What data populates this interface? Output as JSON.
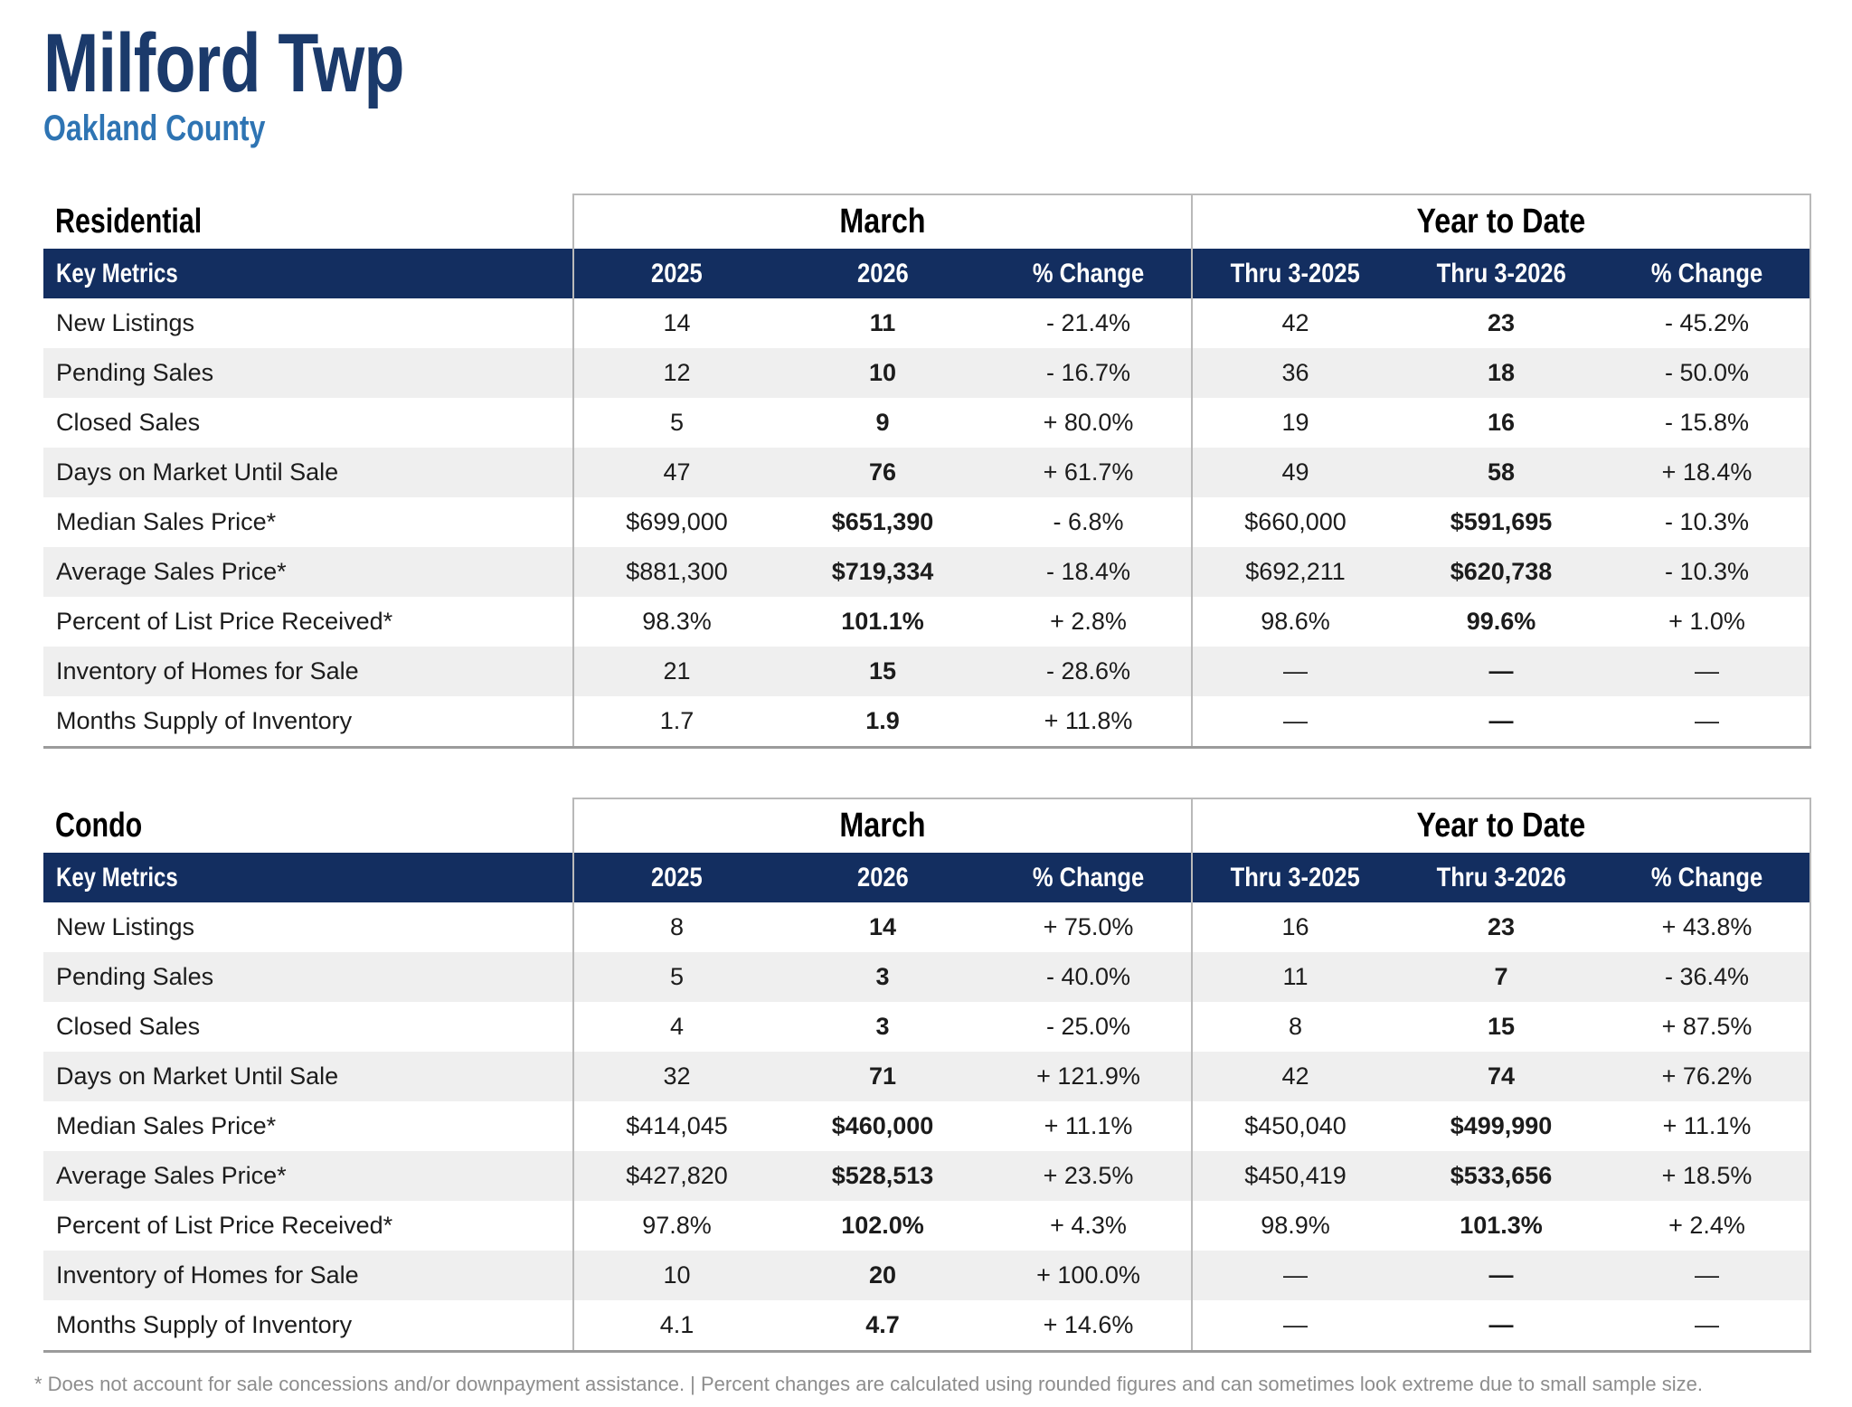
{
  "page": {
    "title": "Milford Twp",
    "subtitle": "Oakland County",
    "footnote": "* Does not account for sale concessions and/or downpayment assistance. | Percent changes are calculated using rounded figures and can sometimes look extreme due to small sample size."
  },
  "colors": {
    "navy": "#132e60",
    "title-navy": "#1b3a6b",
    "subtitle-blue": "#2e74b3",
    "row-alt": "#efefef",
    "line": "#b9b9b9",
    "footnote-gray": "#8d8d8d"
  },
  "tables": [
    {
      "section_label": "Residential",
      "group_headers": [
        "March",
        "Year to Date"
      ],
      "columns": [
        "Key Metrics",
        "2025",
        "2026",
        "% Change",
        "Thru 3-2025",
        "Thru 3-2026",
        "% Change"
      ],
      "rows": [
        {
          "label": "New Listings",
          "m2025": "14",
          "m2026": "11",
          "mchange": "- 21.4%",
          "y2025": "42",
          "y2026": "23",
          "ychange": "- 45.2%"
        },
        {
          "label": "Pending Sales",
          "m2025": "12",
          "m2026": "10",
          "mchange": "- 16.7%",
          "y2025": "36",
          "y2026": "18",
          "ychange": "- 50.0%"
        },
        {
          "label": "Closed Sales",
          "m2025": "5",
          "m2026": "9",
          "mchange": "+ 80.0%",
          "y2025": "19",
          "y2026": "16",
          "ychange": "- 15.8%"
        },
        {
          "label": "Days on Market Until Sale",
          "m2025": "47",
          "m2026": "76",
          "mchange": "+ 61.7%",
          "y2025": "49",
          "y2026": "58",
          "ychange": "+ 18.4%"
        },
        {
          "label": "Median Sales Price*",
          "m2025": "$699,000",
          "m2026": "$651,390",
          "mchange": "- 6.8%",
          "y2025": "$660,000",
          "y2026": "$591,695",
          "ychange": "- 10.3%"
        },
        {
          "label": "Average Sales Price*",
          "m2025": "$881,300",
          "m2026": "$719,334",
          "mchange": "- 18.4%",
          "y2025": "$692,211",
          "y2026": "$620,738",
          "ychange": "- 10.3%"
        },
        {
          "label": "Percent of List Price Received*",
          "m2025": "98.3%",
          "m2026": "101.1%",
          "mchange": "+ 2.8%",
          "y2025": "98.6%",
          "y2026": "99.6%",
          "ychange": "+ 1.0%"
        },
        {
          "label": "Inventory of Homes for Sale",
          "m2025": "21",
          "m2026": "15",
          "mchange": "- 28.6%",
          "y2025": "—",
          "y2026": "—",
          "ychange": "—"
        },
        {
          "label": "Months Supply of Inventory",
          "m2025": "1.7",
          "m2026": "1.9",
          "mchange": "+ 11.8%",
          "y2025": "—",
          "y2026": "—",
          "ychange": "—"
        }
      ]
    },
    {
      "section_label": "Condo",
      "group_headers": [
        "March",
        "Year to Date"
      ],
      "columns": [
        "Key Metrics",
        "2025",
        "2026",
        "% Change",
        "Thru 3-2025",
        "Thru 3-2026",
        "% Change"
      ],
      "rows": [
        {
          "label": "New Listings",
          "m2025": "8",
          "m2026": "14",
          "mchange": "+ 75.0%",
          "y2025": "16",
          "y2026": "23",
          "ychange": "+ 43.8%"
        },
        {
          "label": "Pending Sales",
          "m2025": "5",
          "m2026": "3",
          "mchange": "- 40.0%",
          "y2025": "11",
          "y2026": "7",
          "ychange": "- 36.4%"
        },
        {
          "label": "Closed Sales",
          "m2025": "4",
          "m2026": "3",
          "mchange": "- 25.0%",
          "y2025": "8",
          "y2026": "15",
          "ychange": "+ 87.5%"
        },
        {
          "label": "Days on Market Until Sale",
          "m2025": "32",
          "m2026": "71",
          "mchange": "+ 121.9%",
          "y2025": "42",
          "y2026": "74",
          "ychange": "+ 76.2%"
        },
        {
          "label": "Median Sales Price*",
          "m2025": "$414,045",
          "m2026": "$460,000",
          "mchange": "+ 11.1%",
          "y2025": "$450,040",
          "y2026": "$499,990",
          "ychange": "+ 11.1%"
        },
        {
          "label": "Average Sales Price*",
          "m2025": "$427,820",
          "m2026": "$528,513",
          "mchange": "+ 23.5%",
          "y2025": "$450,419",
          "y2026": "$533,656",
          "ychange": "+ 18.5%"
        },
        {
          "label": "Percent of List Price Received*",
          "m2025": "97.8%",
          "m2026": "102.0%",
          "mchange": "+ 4.3%",
          "y2025": "98.9%",
          "y2026": "101.3%",
          "ychange": "+ 2.4%"
        },
        {
          "label": "Inventory of Homes for Sale",
          "m2025": "10",
          "m2026": "20",
          "mchange": "+ 100.0%",
          "y2025": "—",
          "y2026": "—",
          "ychange": "—"
        },
        {
          "label": "Months Supply of Inventory",
          "m2025": "4.1",
          "m2026": "4.7",
          "mchange": "+ 14.6%",
          "y2025": "—",
          "y2026": "—",
          "ychange": "—"
        }
      ]
    }
  ]
}
